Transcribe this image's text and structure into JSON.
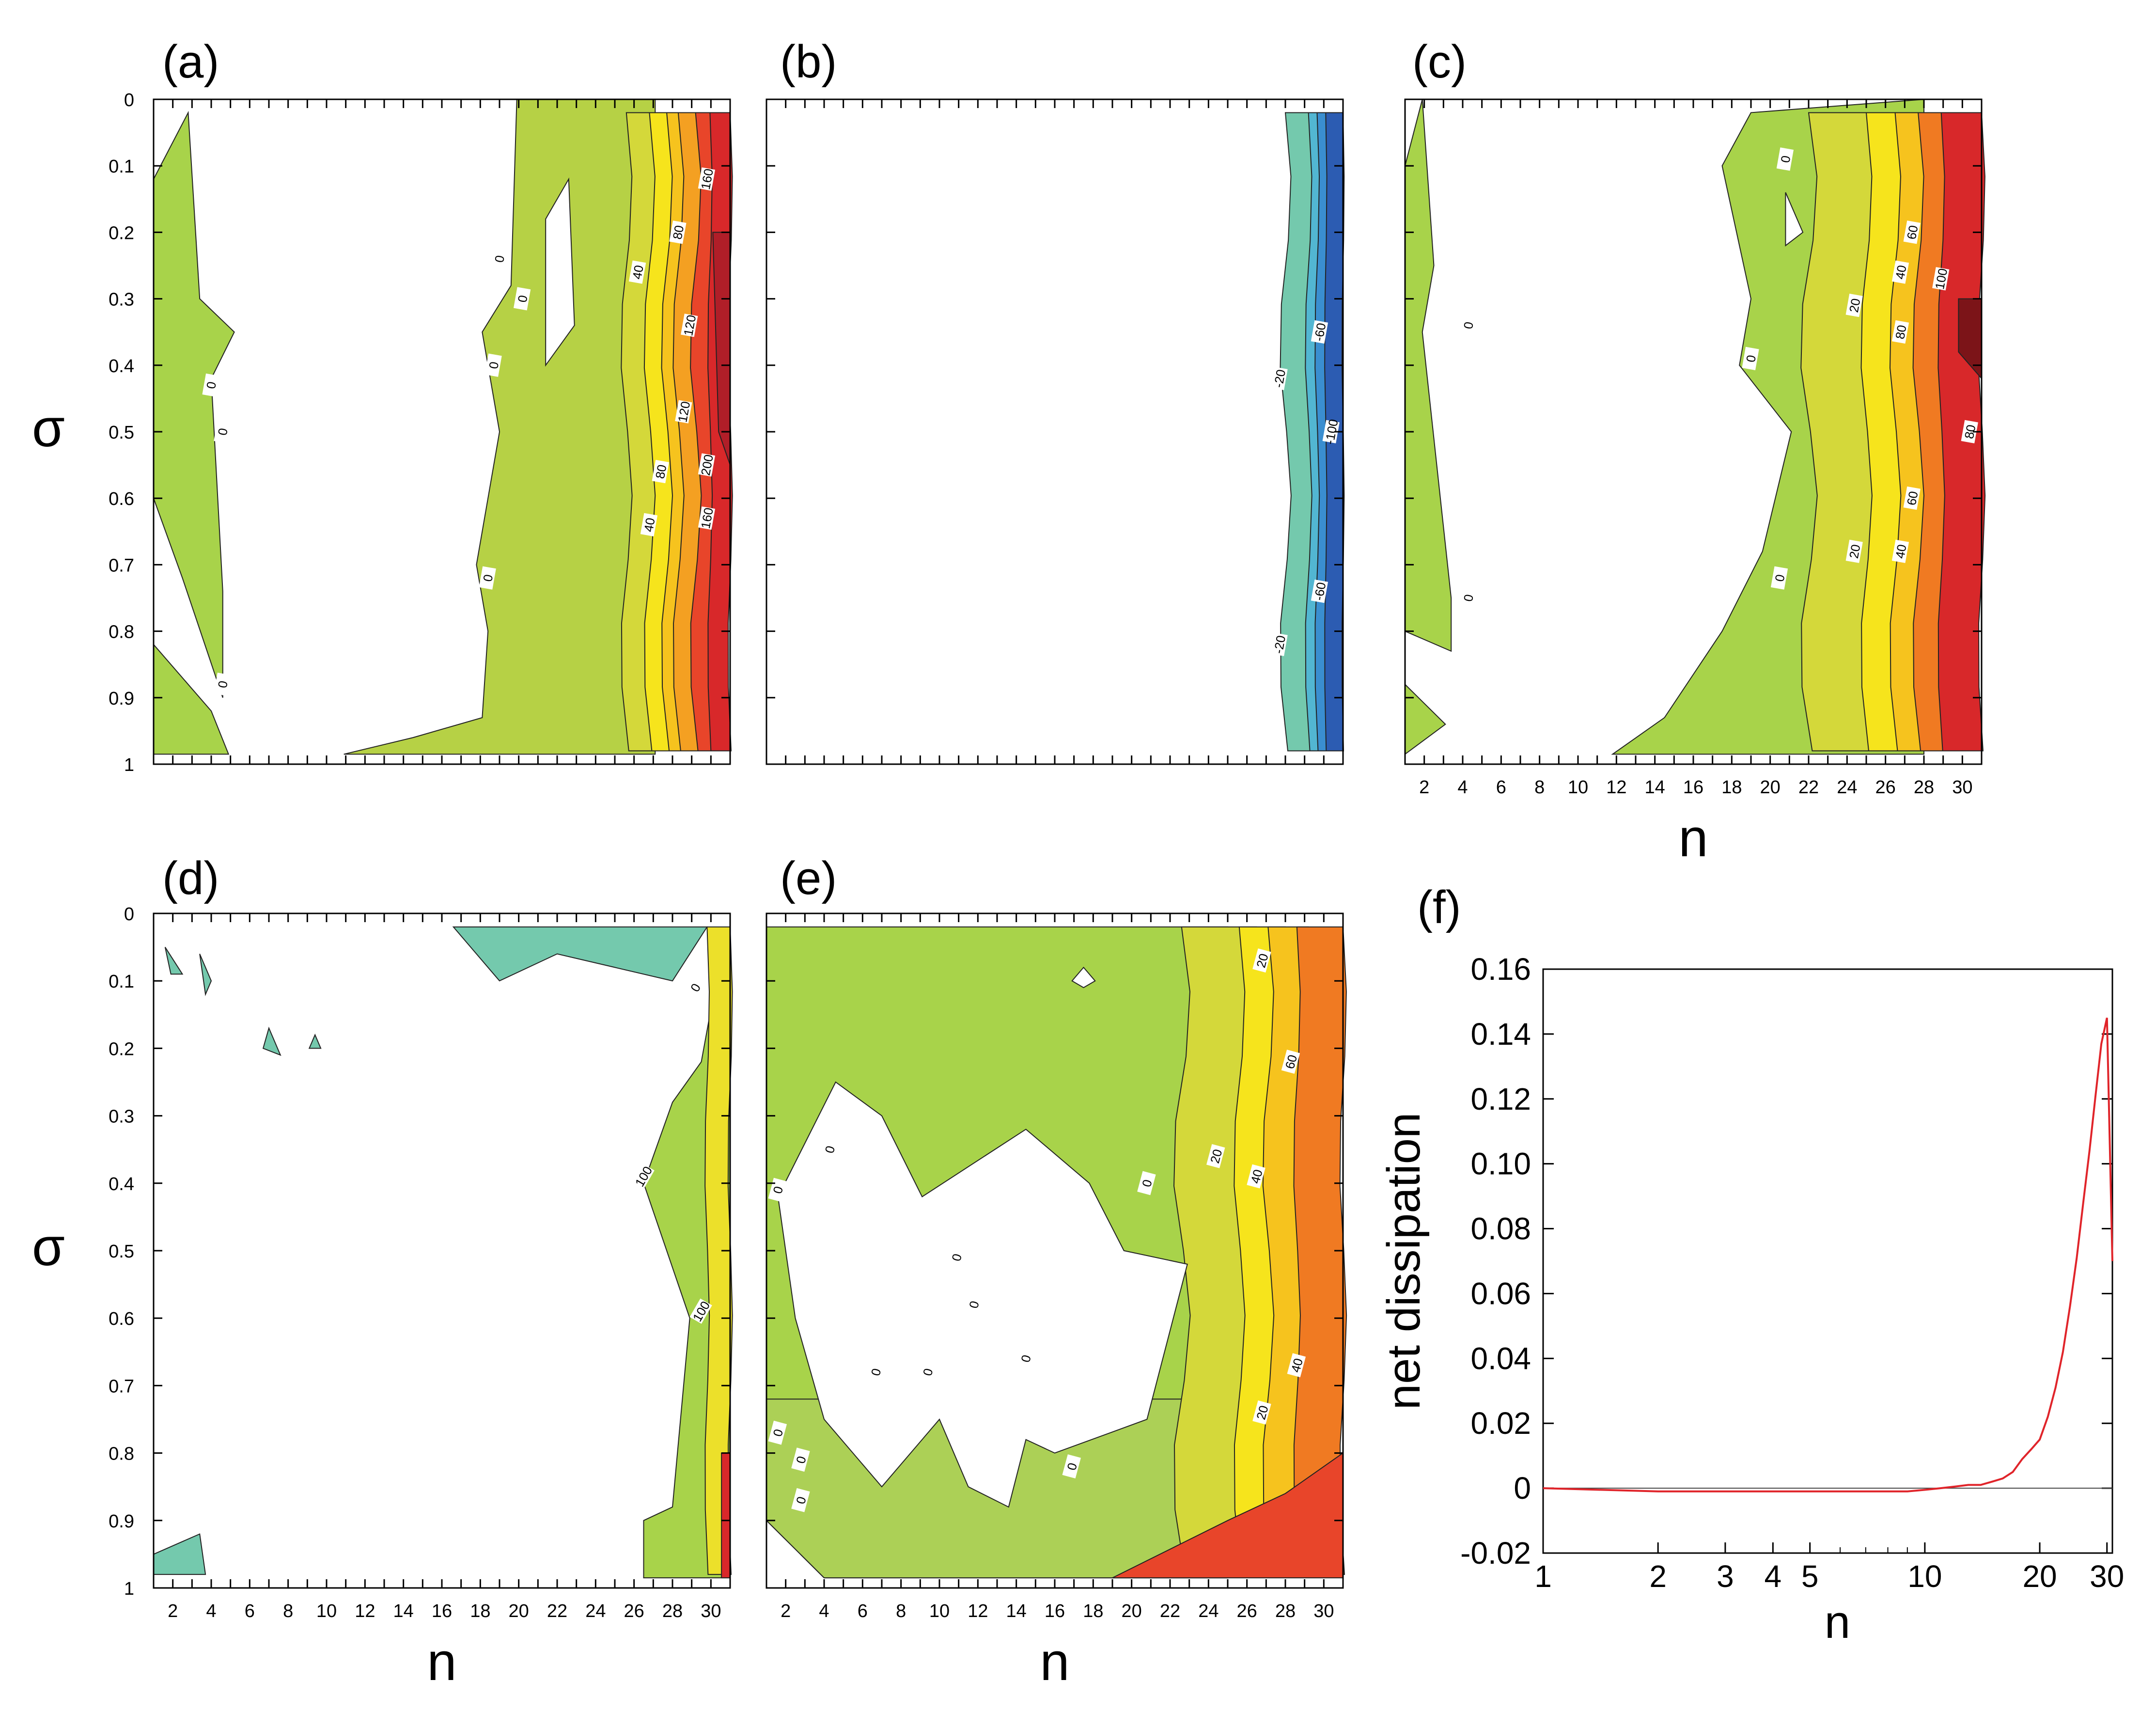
{
  "figure": {
    "panels": [
      {
        "id": "a",
        "label": "(a)",
        "xlabel": "",
        "ylabel": "σ",
        "show_x_ticklabels": false,
        "contour_labels": [
          "160",
          "80",
          "40",
          "0",
          "0",
          "0",
          "0",
          "0",
          "120",
          "120",
          "200",
          "80",
          "40",
          "160",
          "0",
          "0"
        ]
      },
      {
        "id": "b",
        "label": "(b)",
        "xlabel": "",
        "ylabel": "",
        "show_x_ticklabels": false,
        "contour_labels": [
          "-60",
          "-20",
          "-100",
          "-60",
          "-20"
        ]
      },
      {
        "id": "c",
        "label": "(c)",
        "xlabel": "n",
        "ylabel": "",
        "show_x_ticklabels": true,
        "contour_labels": [
          "0",
          "60",
          "40",
          "100",
          "20",
          "80",
          "0",
          "0",
          "80",
          "60",
          "20",
          "40",
          "0",
          "0"
        ]
      },
      {
        "id": "d",
        "label": "(d)",
        "xlabel": "n",
        "ylabel": "σ",
        "show_x_ticklabels": true,
        "contour_labels": [
          "0",
          "100",
          "100"
        ]
      },
      {
        "id": "e",
        "label": "(e)",
        "xlabel": "n",
        "ylabel": "",
        "show_x_ticklabels": true,
        "contour_labels": [
          "20",
          "60",
          "0",
          "0",
          "20",
          "0",
          "40",
          "0",
          "0",
          "0",
          "0",
          "0",
          "0",
          "40",
          "20",
          "0",
          "0",
          "0"
        ]
      }
    ],
    "contour_axes": {
      "x_ticks": [
        "2",
        "4",
        "6",
        "8",
        "10",
        "12",
        "14",
        "16",
        "18",
        "20",
        "22",
        "24",
        "26",
        "28",
        "30"
      ],
      "y_ticks": [
        "0",
        "0.1",
        "0.2",
        "0.3",
        "0.4",
        "0.5",
        "0.6",
        "0.7",
        "0.8",
        "0.9",
        "1"
      ]
    },
    "line_panel": {
      "label": "(f)",
      "xlabel": "n",
      "ylabel": "net dissipation",
      "x_ticks": [
        "1",
        "2",
        "3",
        "4",
        "5",
        "10",
        "20",
        "30"
      ],
      "y_ticks": [
        "0.16",
        "0.14",
        "0.12",
        "0.10",
        "0.08",
        "0.06",
        "0.04",
        "0.02",
        "0",
        "-0.02"
      ]
    }
  },
  "chart_data": [
    {
      "type": "heatmap",
      "panel": "a",
      "title": "(a)",
      "xlabel": "",
      "ylabel": "σ",
      "xlim": [
        1,
        31
      ],
      "ylim": [
        1,
        0
      ],
      "contour_levels": [
        0,
        40,
        80,
        120,
        160,
        200
      ],
      "description_values": {
        "max_level_near_n": 30,
        "zero_region": "n < 24"
      }
    },
    {
      "type": "heatmap",
      "panel": "b",
      "title": "(b)",
      "xlabel": "",
      "ylabel": "",
      "xlim": [
        1,
        31
      ],
      "ylim": [
        1,
        0
      ],
      "contour_levels": [
        -100,
        -60,
        -20
      ]
    },
    {
      "type": "heatmap",
      "panel": "c",
      "title": "(c)",
      "xlabel": "n",
      "ylabel": "",
      "xlim": [
        1,
        31
      ],
      "ylim": [
        1,
        0
      ],
      "contour_levels": [
        0,
        20,
        40,
        60,
        80,
        100
      ]
    },
    {
      "type": "heatmap",
      "panel": "d",
      "title": "(d)",
      "xlabel": "n",
      "ylabel": "σ",
      "xlim": [
        1,
        31
      ],
      "ylim": [
        1,
        0
      ],
      "contour_levels": [
        0,
        100
      ]
    },
    {
      "type": "heatmap",
      "panel": "e",
      "title": "(e)",
      "xlabel": "n",
      "ylabel": "",
      "xlim": [
        1,
        31
      ],
      "ylim": [
        1,
        0
      ],
      "contour_levels": [
        0,
        20,
        40,
        60
      ]
    },
    {
      "type": "line",
      "panel": "f",
      "title": "(f)",
      "xlabel": "n",
      "ylabel": "net dissipation",
      "xscale": "log",
      "xlim": [
        1,
        31
      ],
      "ylim": [
        -0.02,
        0.16
      ],
      "series": [
        {
          "name": "net dissipation",
          "x": [
            1,
            2,
            3,
            4,
            5,
            6,
            7,
            8,
            9,
            10,
            11,
            12,
            13,
            14,
            15,
            16,
            17,
            18,
            19,
            20,
            21,
            22,
            23,
            24,
            25,
            26,
            27,
            28,
            29,
            30,
            31
          ],
          "y": [
            0,
            -0.001,
            -0.001,
            -0.001,
            -0.001,
            -0.001,
            -0.001,
            -0.001,
            -0.001,
            -0.0005,
            0.0,
            0.0005,
            0.001,
            0.001,
            0.002,
            0.003,
            0.005,
            0.009,
            0.012,
            0.015,
            0.022,
            0.031,
            0.042,
            0.056,
            0.071,
            0.088,
            0.104,
            0.121,
            0.137,
            0.145,
            0.07
          ]
        }
      ],
      "reference_line": 0
    }
  ]
}
